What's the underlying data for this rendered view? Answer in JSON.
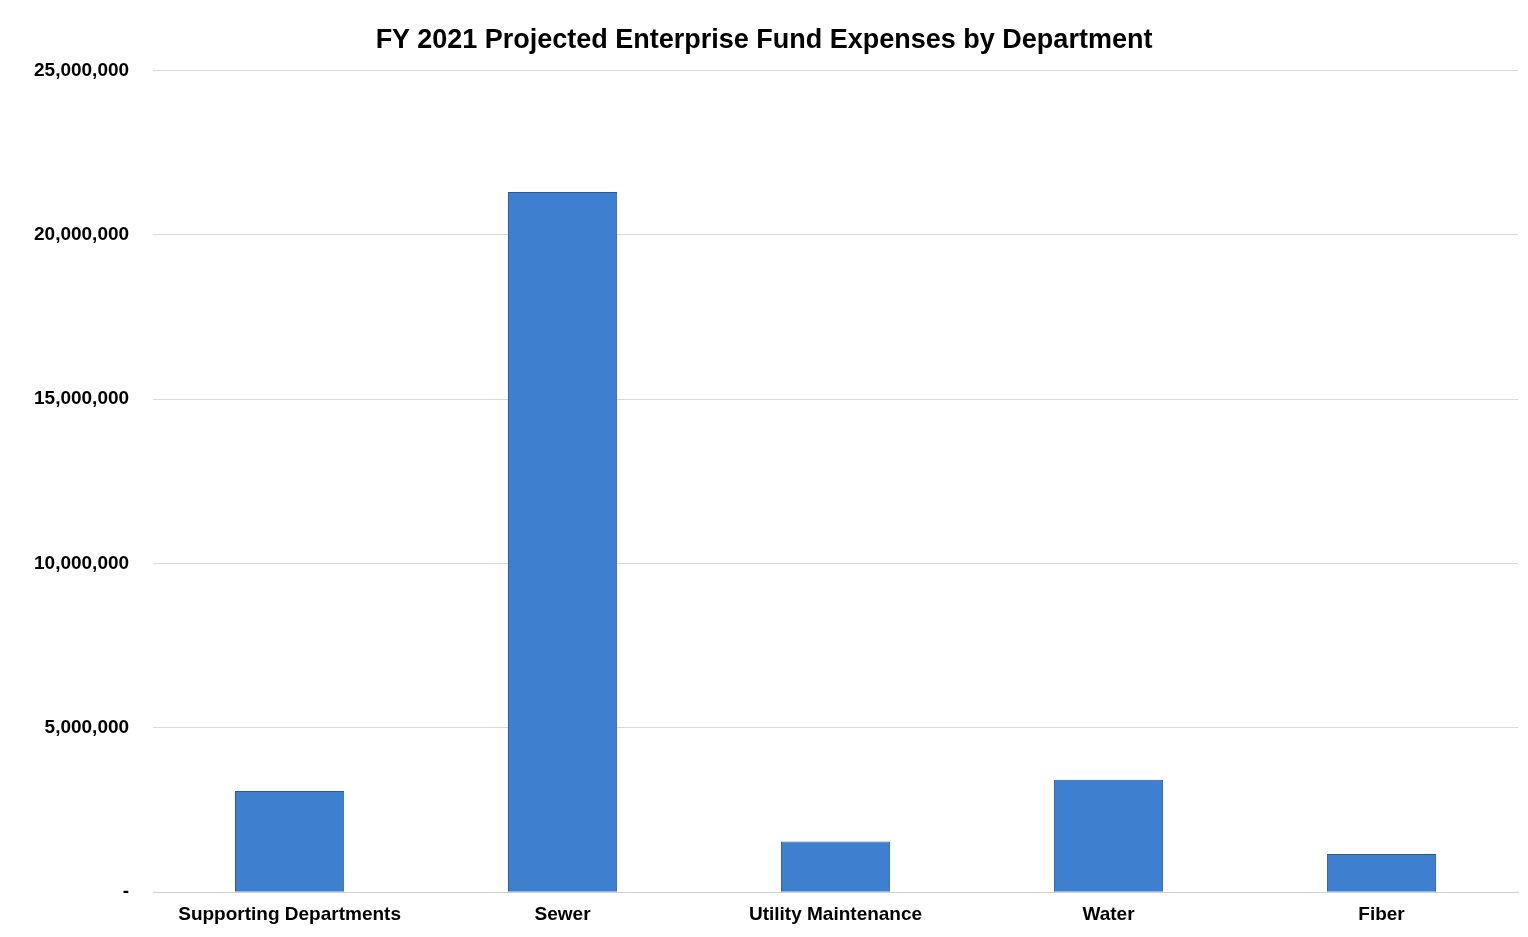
{
  "chart_data": {
    "type": "bar",
    "title": "FY 2021 Projected Enterprise Fund Expenses by Department",
    "categories": [
      "Supporting Departments",
      "Sewer",
      "Utility Maintenance",
      "Water",
      "Fiber"
    ],
    "values": [
      3080000,
      21300000,
      1540000,
      3420000,
      1160000
    ],
    "color": "#3f7fcf",
    "ylim": [
      0,
      25000000
    ],
    "yticks": [
      {
        "value": 0,
        "label": "-"
      },
      {
        "value": 5000000,
        "label": "5,000,000"
      },
      {
        "value": 10000000,
        "label": "10,000,000"
      },
      {
        "value": 15000000,
        "label": "15,000,000"
      },
      {
        "value": 20000000,
        "label": "20,000,000"
      },
      {
        "value": 25000000,
        "label": "25,000,000"
      }
    ],
    "grid": "y",
    "legend": false
  }
}
